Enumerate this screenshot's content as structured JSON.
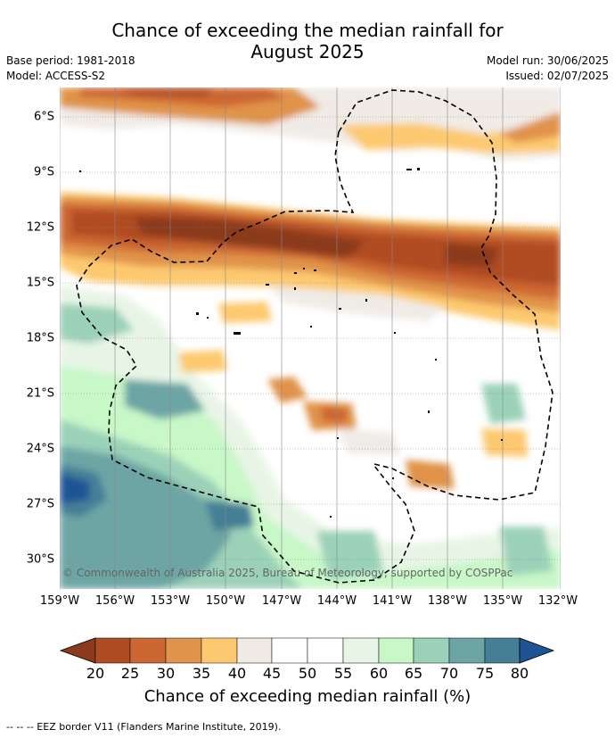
{
  "header": {
    "title_line1": "Chance of exceeding the median rainfall for",
    "title_line2": "August 2025",
    "base_period": "Base period: 1981-2018",
    "model": "Model: ACCESS-S2",
    "model_run": "Model run: 30/06/2025",
    "issued": "Issued: 02/07/2025"
  },
  "map": {
    "lat_labels": [
      "6°S",
      "9°S",
      "12°S",
      "15°S",
      "18°S",
      "21°S",
      "24°S",
      "27°S",
      "30°S"
    ],
    "lon_labels": [
      "159°W",
      "156°W",
      "153°W",
      "150°W",
      "147°W",
      "144°W",
      "141°W",
      "138°W",
      "135°W",
      "132°W"
    ],
    "copyright": "© Commonwealth of Australia 2025, Bureau of Meteorology, supported by COSPPac"
  },
  "colorbar": {
    "ticks": [
      "20",
      "25",
      "30",
      "35",
      "40",
      "45",
      "50",
      "55",
      "60",
      "65",
      "70",
      "75",
      "80"
    ],
    "colors": [
      "#8b3a1e",
      "#b04c23",
      "#cc6633",
      "#e0934a",
      "#fdc970",
      "#f0ebe6",
      "#ffffff",
      "#ffffff",
      "#e8f5e6",
      "#c8f7c8",
      "#9bd1b8",
      "#6da5a4",
      "#457f96",
      "#1e5496"
    ],
    "title": "Chance of exceeding median rainfall (%)"
  },
  "footer": {
    "eez_legend": "--  --  -- EEZ border V11 (Flanders Marine Institute, 2019)."
  }
}
